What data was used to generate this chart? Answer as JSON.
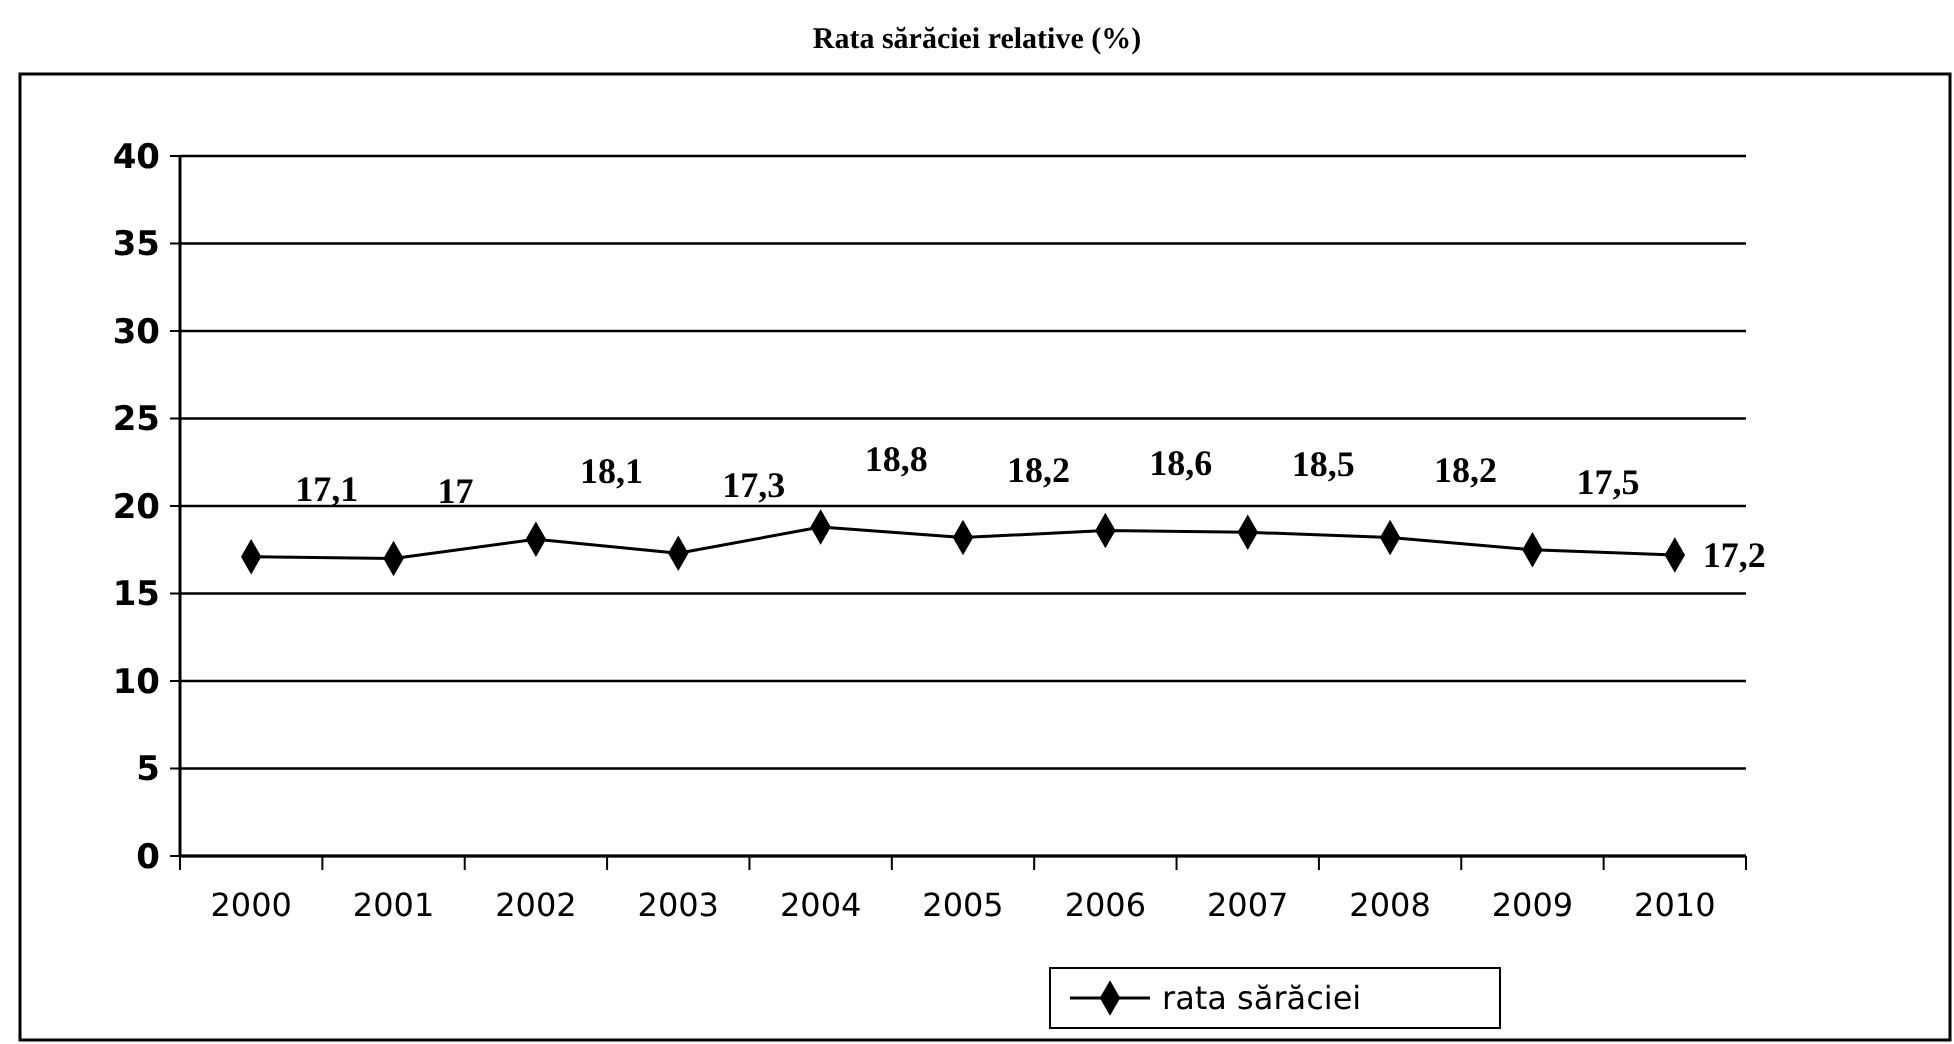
{
  "chart_data": {
    "type": "line",
    "title": "Rata sărăciei relative (%)",
    "categories": [
      "2000",
      "2001",
      "2002",
      "2003",
      "2004",
      "2005",
      "2006",
      "2007",
      "2008",
      "2009",
      "2010"
    ],
    "series": [
      {
        "name": "rata sărăciei",
        "color": "#000000",
        "values": [
          17.1,
          17,
          18.1,
          17.3,
          18.8,
          18.2,
          18.6,
          18.5,
          18.2,
          17.5,
          17.2
        ],
        "value_labels": [
          "17,1",
          "17",
          "18,1",
          "17,3",
          "18,8",
          "18,2",
          "18,6",
          "18,5",
          "18,2",
          "17,5",
          "17,2"
        ]
      }
    ],
    "ylim": [
      0,
      40
    ],
    "yticks": [
      0,
      5,
      10,
      15,
      20,
      25,
      30,
      35,
      40
    ],
    "grid": "y",
    "legend": "bottom",
    "marker": "diamond",
    "line_style": "solid"
  }
}
